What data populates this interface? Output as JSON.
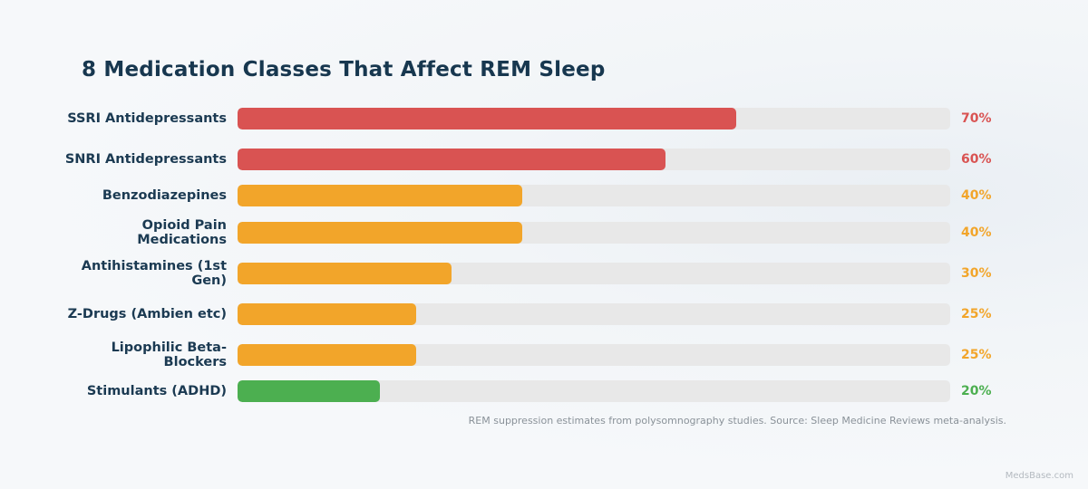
{
  "title": "8 Medication Classes That Affect REM Sleep",
  "footnote": "REM suppression estimates from polysomnography studies. Source: Sleep Medicine Reviews meta-analysis.",
  "brand": "MedsBase.com",
  "colors": {
    "high": "#d95352",
    "medium": "#f2a52a",
    "low": "#4caf50",
    "track": "#e8e8e8",
    "text": "#1b3a52"
  },
  "chart_data": {
    "type": "bar",
    "orientation": "horizontal",
    "title": "8 Medication Classes That Affect REM Sleep",
    "xlim": [
      0,
      100
    ],
    "categories": [
      "SSRI Antidepressants",
      "SNRI Antidepressants",
      "Benzodiazepines",
      "Opioid Pain Medications",
      "Antihistamines (1st Gen)",
      "Z-Drugs (Ambien etc)",
      "Lipophilic Beta-Blockers",
      "Stimulants (ADHD)"
    ],
    "values": [
      70,
      60,
      40,
      40,
      30,
      25,
      25,
      20
    ],
    "value_labels": [
      "70%",
      "60%",
      "40%",
      "40%",
      "30%",
      "25%",
      "25%",
      "20%"
    ],
    "bar_colors": [
      "high",
      "high",
      "medium",
      "medium",
      "medium",
      "medium",
      "medium",
      "low"
    ],
    "grid": false,
    "legend": "none"
  }
}
